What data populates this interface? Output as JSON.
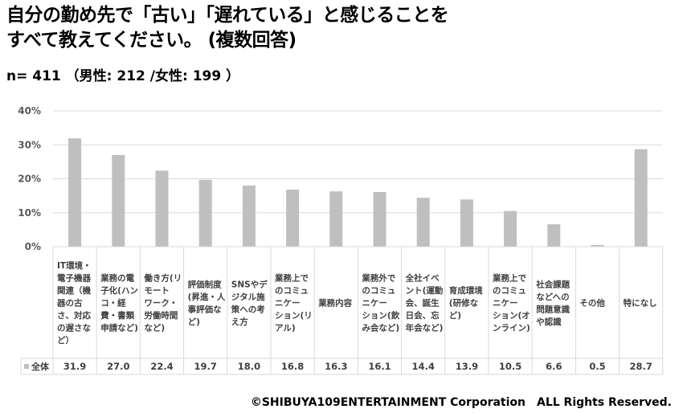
{
  "title_lines": [
    "自分の勤め先で「古い」「遅れている」と感じることを",
    "すべて教えてください。 (複数回答)"
  ],
  "subtitle": "n= 411 （男性: 212 /女性: 199 ）",
  "copyright": "©SHIBUYA109ENTERTAINMENT Corporation　ALL Rights Reserved.",
  "chart_data": {
    "type": "bar",
    "categories": [
      "IT環境・電子機器関連（機器の古さ、対応の遅さなど）",
      "業務の電子化(ハンコ・経費・書類申請など)",
      "働き方(リモートワーク・労働時間など)",
      "評価制度(昇進・人事評価など)",
      "SNSやデジタル施策への考え方",
      "業務上でのコミュニケーション(リアル)",
      "業務内容",
      "業務外でのコミュニケーション(飲み会など)",
      "全社イベント(運動会、誕生日会、忘年会など)",
      "育成環境(研修など)",
      "業務上でのコミュニケーション(オンライン)",
      "社会課題などへの問題意識や認識",
      "その他",
      "特になし"
    ],
    "category_lines": [
      [
        "IT環境・",
        "電子機器",
        "関連（機",
        "器の古",
        "さ、対応",
        "の遅さな",
        "ど）"
      ],
      [
        "業務の電",
        "子化(ハン",
        "コ・経",
        "費・書類",
        "申請など)"
      ],
      [
        "働き方(リ",
        "モート",
        "ワーク・",
        "労働時間",
        "など)"
      ],
      [
        "評価制度",
        "(昇進・人",
        "事評価な",
        "ど)"
      ],
      [
        "SNSやデ",
        "ジタル施",
        "策への考",
        "え方"
      ],
      [
        "業務上で",
        "のコミュ",
        "ニケー",
        "ション(リ",
        "アル)"
      ],
      [
        "業務内容"
      ],
      [
        "業務外で",
        "のコミュ",
        "ニケー",
        "ション(飲",
        "み会など)"
      ],
      [
        "全社イベ",
        "ント(運動",
        "会、誕生",
        "日会、忘",
        "年会など)"
      ],
      [
        "育成環境",
        "(研修な",
        "ど)"
      ],
      [
        "業務上で",
        "のコミュ",
        "ニケー",
        "ション(オ",
        "ンライン)"
      ],
      [
        "社会課題",
        "などへの",
        "問題意識",
        "や認識"
      ],
      [
        "その他"
      ],
      [
        "特になし"
      ]
    ],
    "series": [
      {
        "name": "全体",
        "values": [
          31.9,
          27.0,
          22.4,
          19.7,
          18.0,
          16.8,
          16.3,
          16.1,
          14.4,
          13.9,
          10.5,
          6.6,
          0.5,
          28.7
        ]
      }
    ],
    "value_labels": [
      "31.9",
      "27.0",
      "22.4",
      "19.7",
      "18.0",
      "16.8",
      "16.3",
      "16.1",
      "14.4",
      "13.9",
      "10.5",
      "6.6",
      "0.5",
      "28.7"
    ],
    "y_ticks": [
      "0%",
      "10%",
      "20%",
      "30%",
      "40%"
    ],
    "ylim": [
      0,
      40
    ],
    "grid": true,
    "bar_color": "#bfbfbf",
    "grid_color": "#d9d9d9",
    "table_border_color": "#d9d9d9"
  }
}
